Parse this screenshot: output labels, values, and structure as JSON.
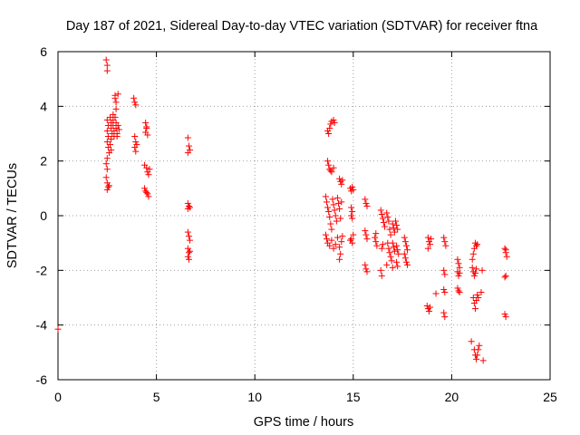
{
  "chart_data": {
    "type": "scatter",
    "title": "Day 187 of 2021, Sidereal Day-to-day VTEC variation (SDTVAR) for receiver ftna",
    "xlabel": "GPS time / hours",
    "ylabel": "SDTVAR / TECUs",
    "xlim": [
      0,
      25
    ],
    "ylim": [
      -6,
      6
    ],
    "xticks": [
      0,
      5,
      10,
      15,
      20,
      25
    ],
    "yticks": [
      -6,
      -4,
      -2,
      0,
      2,
      4,
      6
    ],
    "xtick_labels": [
      "0",
      "5",
      "10",
      "15",
      "20",
      "25"
    ],
    "ytick_labels": [
      "-6",
      "-4",
      "-2",
      "0",
      "2",
      "4",
      "6"
    ],
    "grid": true,
    "marker": "plus",
    "marker_color": "#ff0000",
    "series": [
      {
        "name": "ftna",
        "points": [
          [
            0.0,
            -4.15
          ],
          [
            2.45,
            5.7
          ],
          [
            2.5,
            5.5
          ],
          [
            2.5,
            5.3
          ],
          [
            2.5,
            3.5
          ],
          [
            2.55,
            3.3
          ],
          [
            2.5,
            3.1
          ],
          [
            2.55,
            2.9
          ],
          [
            2.5,
            2.7
          ],
          [
            2.55,
            2.5
          ],
          [
            2.6,
            2.3
          ],
          [
            2.5,
            2.1
          ],
          [
            2.45,
            1.9
          ],
          [
            2.5,
            1.7
          ],
          [
            2.45,
            1.4
          ],
          [
            2.5,
            1.2
          ],
          [
            2.55,
            1.05
          ],
          [
            2.5,
            0.95
          ],
          [
            2.6,
            1.1
          ],
          [
            2.65,
            3.6
          ],
          [
            2.7,
            3.4
          ],
          [
            2.7,
            3.2
          ],
          [
            2.75,
            3.0
          ],
          [
            2.7,
            2.8
          ],
          [
            2.65,
            2.6
          ],
          [
            2.7,
            2.4
          ],
          [
            2.8,
            3.7
          ],
          [
            2.8,
            3.5
          ],
          [
            2.8,
            3.3
          ],
          [
            2.85,
            3.1
          ],
          [
            2.85,
            2.9
          ],
          [
            2.9,
            4.4
          ],
          [
            2.9,
            4.3
          ],
          [
            2.95,
            4.15
          ],
          [
            2.95,
            3.9
          ],
          [
            2.9,
            3.6
          ],
          [
            2.95,
            3.4
          ],
          [
            2.95,
            3.2
          ],
          [
            3.0,
            3.0
          ],
          [
            3.0,
            2.9
          ],
          [
            3.05,
            4.45
          ],
          [
            3.05,
            3.3
          ],
          [
            3.1,
            3.15
          ],
          [
            3.85,
            4.3
          ],
          [
            3.9,
            4.15
          ],
          [
            3.95,
            4.05
          ],
          [
            3.9,
            2.9
          ],
          [
            3.95,
            2.7
          ],
          [
            3.9,
            2.5
          ],
          [
            3.95,
            2.35
          ],
          [
            4.0,
            2.6
          ],
          [
            4.45,
            3.4
          ],
          [
            4.5,
            3.2
          ],
          [
            4.45,
            3.05
          ],
          [
            4.55,
            2.95
          ],
          [
            4.5,
            3.25
          ],
          [
            4.4,
            1.85
          ],
          [
            4.5,
            1.75
          ],
          [
            4.55,
            1.6
          ],
          [
            4.6,
            1.5
          ],
          [
            4.65,
            1.7
          ],
          [
            4.4,
            1.0
          ],
          [
            4.45,
            0.9
          ],
          [
            4.55,
            0.8
          ],
          [
            4.6,
            0.7
          ],
          [
            4.5,
            0.85
          ],
          [
            6.6,
            2.85
          ],
          [
            6.65,
            2.55
          ],
          [
            6.7,
            2.4
          ],
          [
            6.6,
            2.3
          ],
          [
            6.6,
            0.45
          ],
          [
            6.65,
            0.35
          ],
          [
            6.6,
            0.25
          ],
          [
            6.7,
            0.3
          ],
          [
            6.6,
            -0.6
          ],
          [
            6.65,
            -0.75
          ],
          [
            6.7,
            -0.9
          ],
          [
            6.6,
            -1.2
          ],
          [
            6.65,
            -1.35
          ],
          [
            6.6,
            -1.5
          ],
          [
            6.7,
            -1.3
          ],
          [
            6.65,
            -1.6
          ],
          [
            13.7,
            3.1
          ],
          [
            13.75,
            3.0
          ],
          [
            13.8,
            3.2
          ],
          [
            13.85,
            3.35
          ],
          [
            13.9,
            3.45
          ],
          [
            14.0,
            3.5
          ],
          [
            14.05,
            3.4
          ],
          [
            13.7,
            2.0
          ],
          [
            13.75,
            1.85
          ],
          [
            13.8,
            1.7
          ],
          [
            13.85,
            1.65
          ],
          [
            13.9,
            1.6
          ],
          [
            14.0,
            1.75
          ],
          [
            13.6,
            0.7
          ],
          [
            13.65,
            0.5
          ],
          [
            13.7,
            0.3
          ],
          [
            13.75,
            0.15
          ],
          [
            13.8,
            -0.05
          ],
          [
            13.85,
            -0.3
          ],
          [
            13.9,
            -0.5
          ],
          [
            13.95,
            0.6
          ],
          [
            14.0,
            0.4
          ],
          [
            14.05,
            0.2
          ],
          [
            14.1,
            0.0
          ],
          [
            14.15,
            -0.2
          ],
          [
            14.2,
            0.65
          ],
          [
            14.25,
            0.45
          ],
          [
            14.3,
            0.25
          ],
          [
            14.35,
            -0.1
          ],
          [
            14.4,
            0.5
          ],
          [
            13.6,
            -0.7
          ],
          [
            13.65,
            -0.85
          ],
          [
            13.7,
            -1.0
          ],
          [
            13.8,
            -1.1
          ],
          [
            13.9,
            -0.9
          ],
          [
            14.0,
            -1.2
          ],
          [
            14.1,
            -1.05
          ],
          [
            14.2,
            -0.8
          ],
          [
            14.3,
            -1.15
          ],
          [
            14.35,
            -1.4
          ],
          [
            14.3,
            -1.6
          ],
          [
            14.4,
            -0.95
          ],
          [
            14.45,
            -0.75
          ],
          [
            14.3,
            1.35
          ],
          [
            14.35,
            1.25
          ],
          [
            14.4,
            1.15
          ],
          [
            14.45,
            1.3
          ],
          [
            14.85,
            1.0
          ],
          [
            14.9,
            0.9
          ],
          [
            14.95,
            1.05
          ],
          [
            15.0,
            0.95
          ],
          [
            14.9,
            0.3
          ],
          [
            14.95,
            0.15
          ],
          [
            14.9,
            0.0
          ],
          [
            14.95,
            -0.1
          ],
          [
            15.0,
            -0.7
          ],
          [
            14.9,
            -0.85
          ],
          [
            14.95,
            -1.0
          ],
          [
            14.85,
            -0.9
          ],
          [
            15.6,
            0.6
          ],
          [
            15.65,
            0.45
          ],
          [
            15.7,
            0.35
          ],
          [
            15.6,
            -0.55
          ],
          [
            15.65,
            -0.7
          ],
          [
            15.7,
            -0.85
          ],
          [
            15.6,
            -1.8
          ],
          [
            15.65,
            -1.95
          ],
          [
            15.7,
            -2.05
          ],
          [
            16.1,
            -0.8
          ],
          [
            16.15,
            -0.95
          ],
          [
            16.2,
            -1.1
          ],
          [
            16.15,
            -0.65
          ],
          [
            16.4,
            0.2
          ],
          [
            16.45,
            0.05
          ],
          [
            16.5,
            -0.1
          ],
          [
            16.55,
            -0.25
          ],
          [
            16.6,
            -0.4
          ],
          [
            16.45,
            -1.2
          ],
          [
            16.5,
            -1.05
          ],
          [
            16.4,
            -2.0
          ],
          [
            16.45,
            -2.2
          ],
          [
            16.7,
            0.1
          ],
          [
            16.75,
            -0.05
          ],
          [
            16.8,
            -0.2
          ],
          [
            16.85,
            -0.5
          ],
          [
            16.9,
            -0.7
          ],
          [
            16.75,
            -1.0
          ],
          [
            16.8,
            -1.2
          ],
          [
            16.85,
            -1.35
          ],
          [
            16.9,
            -1.5
          ],
          [
            16.95,
            -1.65
          ],
          [
            16.7,
            -1.8
          ],
          [
            17.0,
            -0.3
          ],
          [
            17.05,
            -0.45
          ],
          [
            17.1,
            -0.6
          ],
          [
            17.0,
            -1.0
          ],
          [
            17.05,
            -1.15
          ],
          [
            17.1,
            -1.3
          ],
          [
            17.0,
            -1.9
          ],
          [
            17.15,
            -0.2
          ],
          [
            17.2,
            -0.35
          ],
          [
            17.25,
            -0.5
          ],
          [
            17.2,
            -1.1
          ],
          [
            17.25,
            -1.25
          ],
          [
            17.3,
            -1.4
          ],
          [
            17.2,
            -1.7
          ],
          [
            17.25,
            -1.85
          ],
          [
            17.6,
            -0.8
          ],
          [
            17.65,
            -0.95
          ],
          [
            17.7,
            -1.1
          ],
          [
            17.75,
            -1.25
          ],
          [
            17.6,
            -1.4
          ],
          [
            17.65,
            -1.55
          ],
          [
            17.7,
            -1.7
          ],
          [
            17.75,
            -1.8
          ],
          [
            18.8,
            -0.8
          ],
          [
            18.85,
            -0.95
          ],
          [
            18.9,
            -1.05
          ],
          [
            18.95,
            -0.85
          ],
          [
            18.8,
            -1.2
          ],
          [
            18.75,
            -3.3
          ],
          [
            18.8,
            -3.4
          ],
          [
            18.85,
            -3.5
          ],
          [
            18.9,
            -3.35
          ],
          [
            19.2,
            -2.85
          ],
          [
            19.6,
            -0.8
          ],
          [
            19.65,
            -0.95
          ],
          [
            19.7,
            -1.1
          ],
          [
            19.6,
            -2.0
          ],
          [
            19.65,
            -2.15
          ],
          [
            19.6,
            -2.7
          ],
          [
            19.65,
            -2.8
          ],
          [
            19.6,
            -3.55
          ],
          [
            19.65,
            -3.7
          ],
          [
            20.3,
            -1.6
          ],
          [
            20.35,
            -1.75
          ],
          [
            20.4,
            -1.9
          ],
          [
            20.3,
            -2.05
          ],
          [
            20.35,
            -2.2
          ],
          [
            20.4,
            -2.1
          ],
          [
            20.3,
            -2.65
          ],
          [
            20.35,
            -2.75
          ],
          [
            20.4,
            -2.8
          ],
          [
            21.0,
            -4.6
          ],
          [
            21.05,
            -1.6
          ],
          [
            21.1,
            -1.4
          ],
          [
            21.15,
            -1.2
          ],
          [
            21.2,
            -1.0
          ],
          [
            21.25,
            -1.1
          ],
          [
            21.3,
            -1.05
          ],
          [
            21.05,
            -1.9
          ],
          [
            21.1,
            -2.05
          ],
          [
            21.15,
            -2.2
          ],
          [
            21.2,
            -2.1
          ],
          [
            21.25,
            -1.95
          ],
          [
            21.1,
            -3.0
          ],
          [
            21.15,
            -3.2
          ],
          [
            21.2,
            -3.4
          ],
          [
            21.25,
            -3.1
          ],
          [
            21.3,
            -2.9
          ],
          [
            21.35,
            -3.0
          ],
          [
            21.15,
            -4.9
          ],
          [
            21.2,
            -5.1
          ],
          [
            21.25,
            -5.25
          ],
          [
            21.3,
            -5.1
          ],
          [
            21.35,
            -4.9
          ],
          [
            21.4,
            -4.75
          ],
          [
            21.5,
            -2.8
          ],
          [
            21.55,
            -2.0
          ],
          [
            21.6,
            -5.3
          ],
          [
            22.7,
            -1.2
          ],
          [
            22.75,
            -1.35
          ],
          [
            22.8,
            -1.5
          ],
          [
            22.75,
            -1.25
          ],
          [
            22.7,
            -2.25
          ],
          [
            22.75,
            -2.2
          ],
          [
            22.7,
            -3.6
          ],
          [
            22.75,
            -3.7
          ]
        ]
      }
    ]
  }
}
